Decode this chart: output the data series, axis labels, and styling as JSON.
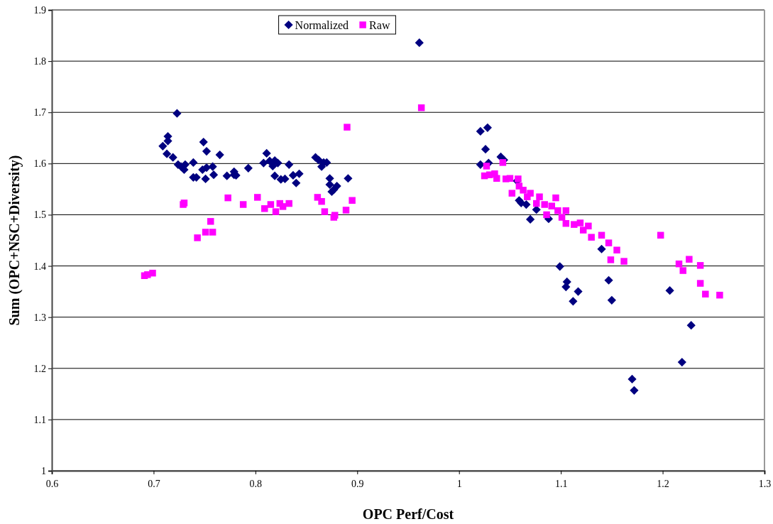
{
  "chart_data": {
    "type": "scatter",
    "xlabel": "OPC Perf/Cost",
    "ylabel": "Sum (OPC+NSC+Diversity)",
    "xlim": [
      0.6,
      1.3
    ],
    "xticks": [
      0.6,
      0.7,
      0.8,
      0.9,
      1,
      1.1,
      1.2,
      1.3
    ],
    "ylim": [
      1,
      1.9
    ],
    "yticks": [
      1,
      1.1,
      1.2,
      1.3,
      1.4,
      1.5,
      1.6,
      1.7,
      1.8,
      1.9
    ],
    "grid": "y",
    "legend": "top",
    "series": [
      {
        "name": "Normalized",
        "color": "#000080",
        "marker": "diamond",
        "x": [
          0.723,
          0.714,
          0.714,
          0.709,
          0.713,
          0.719,
          0.724,
          0.727,
          0.73,
          0.731,
          0.739,
          0.739,
          0.742,
          0.749,
          0.752,
          0.748,
          0.752,
          0.758,
          0.751,
          0.759,
          0.765,
          0.772,
          0.779,
          0.779,
          0.781,
          0.793,
          0.811,
          0.808,
          0.814,
          0.817,
          0.819,
          0.822,
          0.819,
          0.825,
          0.829,
          0.833,
          0.837,
          0.843,
          0.84,
          0.859,
          0.862,
          0.867,
          0.87,
          0.865,
          0.873,
          0.891,
          0.873,
          0.88,
          0.877,
          0.875,
          0.961,
          1.021,
          1.028,
          1.026,
          1.021,
          1.029,
          1.041,
          1.044,
          1.057,
          1.059,
          1.061,
          1.066,
          1.07,
          1.076,
          1.088,
          1.14,
          1.099,
          1.106,
          1.105,
          1.117,
          1.112,
          1.147,
          1.15,
          1.207,
          1.228,
          1.219,
          1.17,
          1.172
        ],
        "values": [
          1.698,
          1.653,
          1.644,
          1.634,
          1.619,
          1.612,
          1.598,
          1.594,
          1.588,
          1.598,
          1.602,
          1.573,
          1.573,
          1.642,
          1.624,
          1.588,
          1.592,
          1.594,
          1.57,
          1.578,
          1.617,
          1.576,
          1.584,
          1.578,
          1.577,
          1.591,
          1.62,
          1.601,
          1.605,
          1.595,
          1.606,
          1.601,
          1.576,
          1.569,
          1.57,
          1.598,
          1.577,
          1.58,
          1.562,
          1.612,
          1.607,
          1.602,
          1.602,
          1.594,
          1.571,
          1.571,
          1.559,
          1.556,
          1.549,
          1.545,
          1.836,
          1.663,
          1.67,
          1.628,
          1.598,
          1.601,
          1.613,
          1.607,
          1.566,
          1.528,
          1.523,
          1.52,
          1.491,
          1.51,
          1.492,
          1.433,
          1.399,
          1.369,
          1.359,
          1.35,
          1.331,
          1.372,
          1.333,
          1.352,
          1.284,
          1.212,
          1.179,
          1.157
        ]
      },
      {
        "name": "Raw",
        "color": "#ff00ff",
        "marker": "square",
        "x": [
          0.691,
          0.694,
          0.699,
          0.73,
          0.729,
          0.773,
          0.743,
          0.751,
          0.758,
          0.756,
          0.788,
          0.802,
          0.809,
          0.815,
          0.82,
          0.824,
          0.827,
          0.833,
          0.861,
          0.865,
          0.868,
          0.878,
          0.877,
          0.889,
          0.895,
          0.89,
          0.963,
          1.027,
          1.025,
          1.03,
          1.035,
          1.037,
          1.043,
          1.046,
          1.05,
          1.052,
          1.058,
          1.059,
          1.063,
          1.07,
          1.067,
          1.079,
          1.076,
          1.084,
          1.091,
          1.095,
          1.097,
          1.105,
          1.086,
          1.101,
          1.105,
          1.113,
          1.119,
          1.127,
          1.122,
          1.13,
          1.14,
          1.147,
          1.155,
          1.149,
          1.162,
          1.198,
          1.216,
          1.22,
          1.226,
          1.237,
          1.237,
          1.242,
          1.256
        ],
        "values": [
          1.381,
          1.383,
          1.386,
          1.523,
          1.52,
          1.533,
          1.455,
          1.466,
          1.466,
          1.487,
          1.52,
          1.534,
          1.512,
          1.52,
          1.506,
          1.522,
          1.516,
          1.522,
          1.534,
          1.526,
          1.506,
          1.499,
          1.495,
          1.509,
          1.528,
          1.671,
          1.709,
          1.595,
          1.576,
          1.578,
          1.58,
          1.571,
          1.602,
          1.57,
          1.571,
          1.542,
          1.57,
          1.556,
          1.548,
          1.542,
          1.535,
          1.535,
          1.522,
          1.52,
          1.517,
          1.533,
          1.508,
          1.508,
          1.5,
          1.495,
          1.483,
          1.481,
          1.484,
          1.478,
          1.47,
          1.456,
          1.46,
          1.445,
          1.431,
          1.412,
          1.409,
          1.46,
          1.404,
          1.391,
          1.413,
          1.401,
          1.366,
          1.345,
          1.343
        ]
      }
    ]
  }
}
